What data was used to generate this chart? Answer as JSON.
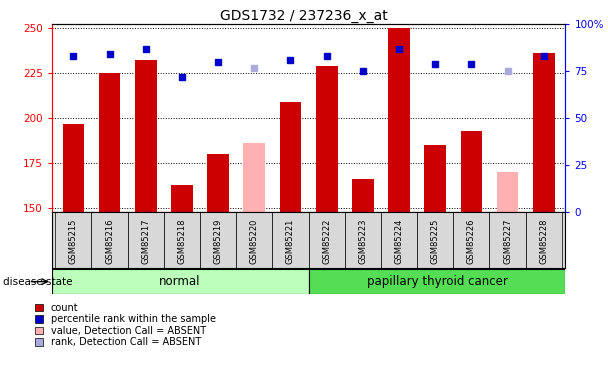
{
  "title": "GDS1732 / 237236_x_at",
  "samples": [
    "GSM85215",
    "GSM85216",
    "GSM85217",
    "GSM85218",
    "GSM85219",
    "GSM85220",
    "GSM85221",
    "GSM85222",
    "GSM85223",
    "GSM85224",
    "GSM85225",
    "GSM85226",
    "GSM85227",
    "GSM85228"
  ],
  "count_values": [
    197,
    225,
    232,
    163,
    180,
    null,
    209,
    229,
    166,
    250,
    185,
    193,
    null,
    236
  ],
  "count_absent": [
    null,
    null,
    null,
    null,
    null,
    186,
    null,
    null,
    null,
    null,
    null,
    null,
    170,
    null
  ],
  "rank_values": [
    83,
    84,
    87,
    72,
    80,
    null,
    81,
    83,
    75,
    87,
    79,
    79,
    null,
    83
  ],
  "rank_absent": [
    null,
    null,
    null,
    null,
    null,
    77,
    null,
    null,
    null,
    null,
    null,
    null,
    75,
    null
  ],
  "ylim_left": [
    148,
    252
  ],
  "ylim_right": [
    0,
    100
  ],
  "yticks_left": [
    150,
    175,
    200,
    225,
    250
  ],
  "yticks_right": [
    0,
    25,
    50,
    75,
    100
  ],
  "bar_color_red": "#cc0000",
  "bar_color_pink": "#ffb0b0",
  "dot_color_blue": "#0000cc",
  "dot_color_lightblue": "#aaaadd",
  "normal_bg": "#bbffbb",
  "cancer_bg": "#55dd55",
  "tick_bg": "#d8d8d8",
  "legend_items": [
    "count",
    "percentile rank within the sample",
    "value, Detection Call = ABSENT",
    "rank, Detection Call = ABSENT"
  ],
  "legend_colors": [
    "#cc0000",
    "#0000cc",
    "#ffb0b0",
    "#aaaadd"
  ]
}
